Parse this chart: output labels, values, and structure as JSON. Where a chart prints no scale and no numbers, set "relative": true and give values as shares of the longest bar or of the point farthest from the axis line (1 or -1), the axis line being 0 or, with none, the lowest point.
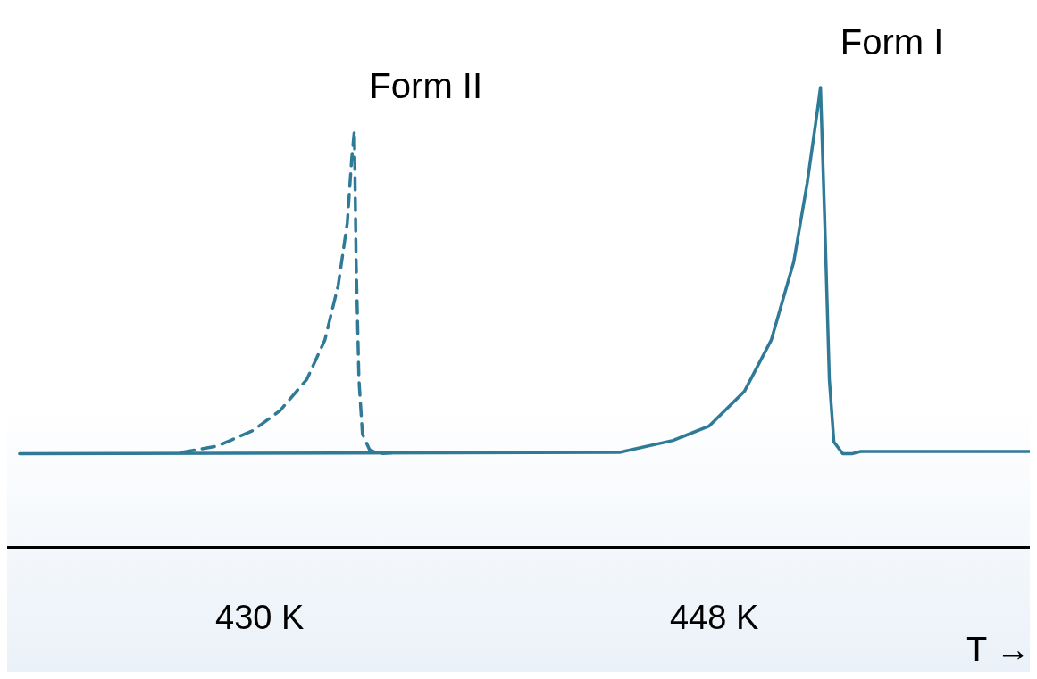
{
  "chart_data": {
    "type": "line",
    "relative": true,
    "xlabel": "T →",
    "xlim": [
      420,
      460.5
    ],
    "xticks": [
      {
        "value": 430,
        "label": "430 K"
      },
      {
        "value": 448,
        "label": "448 K"
      }
    ],
    "grid": false,
    "legend": false,
    "marker": "none",
    "series": [
      {
        "name": "Form I",
        "color": "#2f7a96",
        "line_style": "solid",
        "x": [
          420.49,
          444.25,
          446.37,
          447.79,
          449.2,
          450.26,
          451.15,
          451.68,
          452.03,
          452.21,
          452.38,
          452.56,
          452.74,
          453.09,
          453.45,
          453.8,
          460.5
        ],
        "values": [
          0.204,
          0.207,
          0.233,
          0.264,
          0.34,
          0.451,
          0.621,
          0.791,
          0.927,
          1,
          0.706,
          0.366,
          0.23,
          0.204,
          0.204,
          0.209,
          0.209
        ]
      },
      {
        "name": "Form II",
        "color": "#2f7a96",
        "line_style": "dashed",
        "x": [
          426.92,
          428.34,
          429.75,
          430.81,
          431.87,
          432.58,
          433.11,
          433.47,
          433.64,
          433.75,
          433.82,
          433.93,
          434.07,
          434.35,
          434.7,
          435.23
        ],
        "values": [
          0.207,
          0.221,
          0.255,
          0.298,
          0.366,
          0.451,
          0.57,
          0.706,
          0.842,
          0.906,
          0.621,
          0.366,
          0.247,
          0.213,
          0.204,
          0.206
        ]
      }
    ]
  }
}
